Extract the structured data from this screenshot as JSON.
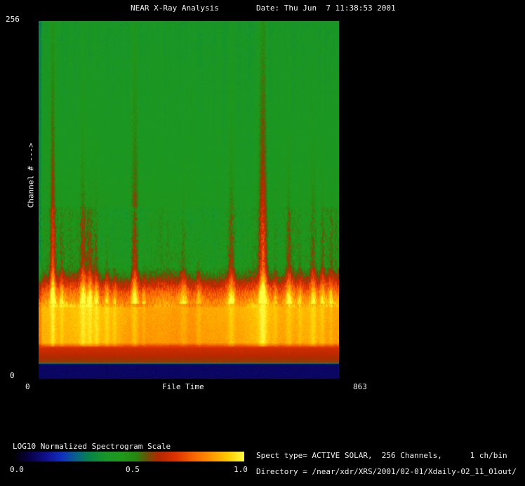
{
  "window": {
    "title": "NEAR X-Ray Analysis",
    "date": "Date: Thu Jun  7 11:38:53 2001"
  },
  "axes": {
    "y_max": "256",
    "y_min": "0",
    "y_label": "Channel # --->",
    "x_min": "0",
    "x_label": "File Time",
    "x_max": "863"
  },
  "colorbar": {
    "title": "LOG10 Normalized Spectrogram Scale",
    "tick_left": "0.0",
    "tick_mid": "0.5",
    "tick_right": "1.0"
  },
  "info": {
    "spect_type": "Spect type= ACTIVE SOLAR,  256 Channels,      1 ch/bin",
    "directory": "Directory = /near/xdr/XRS/2001/02-01/Xdaily-02_11_01out/"
  },
  "colors": {
    "background": "#000000",
    "text": "#f2f2f2"
  },
  "chart_data": {
    "type": "heatmap",
    "title": "NEAR X-Ray Analysis",
    "xlabel": "File Time",
    "ylabel": "Channel #",
    "xlim": [
      0,
      863
    ],
    "ylim": [
      0,
      256
    ],
    "value_scale": {
      "label": "LOG10 Normalized Spectrogram Scale",
      "range": [
        0.0,
        1.0
      ]
    },
    "colormap_stops": [
      [
        0.0,
        0,
        0,
        0
      ],
      [
        0.07,
        8,
        0,
        70
      ],
      [
        0.14,
        16,
        16,
        140
      ],
      [
        0.21,
        16,
        48,
        190
      ],
      [
        0.27,
        8,
        96,
        140
      ],
      [
        0.33,
        8,
        132,
        72
      ],
      [
        0.4,
        24,
        150,
        40
      ],
      [
        0.47,
        32,
        152,
        28
      ],
      [
        0.53,
        36,
        136,
        18
      ],
      [
        0.58,
        110,
        80,
        8
      ],
      [
        0.63,
        180,
        40,
        0
      ],
      [
        0.7,
        222,
        48,
        0
      ],
      [
        0.78,
        248,
        100,
        0
      ],
      [
        0.86,
        255,
        152,
        0
      ],
      [
        0.93,
        255,
        204,
        0
      ],
      [
        1.0,
        255,
        252,
        64
      ]
    ],
    "profile": [
      [
        0.0,
        0.1
      ],
      [
        0.04,
        0.1
      ],
      [
        0.044,
        0.6
      ],
      [
        0.085,
        0.68
      ],
      [
        0.1,
        0.88
      ],
      [
        0.2,
        0.9
      ],
      [
        0.24,
        0.78
      ],
      [
        0.28,
        0.6
      ],
      [
        0.315,
        0.48
      ],
      [
        0.6,
        0.44
      ],
      [
        1.0,
        0.415
      ]
    ],
    "flares": [
      {
        "t": 40,
        "w": 5,
        "amp": 0.3,
        "h": 0.55
      },
      {
        "t": 66,
        "w": 4,
        "amp": 0.14,
        "h": 0.15
      },
      {
        "t": 127,
        "w": 6,
        "amp": 0.22,
        "h": 0.3
      },
      {
        "t": 147,
        "w": 5,
        "amp": 0.2,
        "h": 0.22
      },
      {
        "t": 166,
        "w": 5,
        "amp": 0.18,
        "h": 0.18
      },
      {
        "t": 196,
        "w": 5,
        "amp": 0.16,
        "h": 0.15
      },
      {
        "t": 218,
        "w": 4,
        "amp": 0.12,
        "h": 0.1
      },
      {
        "t": 276,
        "w": 7,
        "amp": 0.26,
        "h": 0.4
      },
      {
        "t": 302,
        "w": 4,
        "amp": 0.12,
        "h": 0.1
      },
      {
        "t": 417,
        "w": 8,
        "amp": 0.16,
        "h": 0.18
      },
      {
        "t": 460,
        "w": 5,
        "amp": 0.13,
        "h": 0.12
      },
      {
        "t": 554,
        "w": 7,
        "amp": 0.2,
        "h": 0.28
      },
      {
        "t": 645,
        "w": 8,
        "amp": 0.32,
        "h": 0.6
      },
      {
        "t": 681,
        "w": 4,
        "amp": 0.12,
        "h": 0.1
      },
      {
        "t": 720,
        "w": 6,
        "amp": 0.18,
        "h": 0.2
      },
      {
        "t": 752,
        "w": 4,
        "amp": 0.12,
        "h": 0.1
      },
      {
        "t": 790,
        "w": 6,
        "amp": 0.2,
        "h": 0.3
      },
      {
        "t": 816,
        "w": 5,
        "amp": 0.16,
        "h": 0.18
      },
      {
        "t": 841,
        "w": 4,
        "amp": 0.12,
        "h": 0.1
      }
    ],
    "noise": {
      "green": 0.075,
      "band": 0.05,
      "floor": 0.025
    }
  }
}
